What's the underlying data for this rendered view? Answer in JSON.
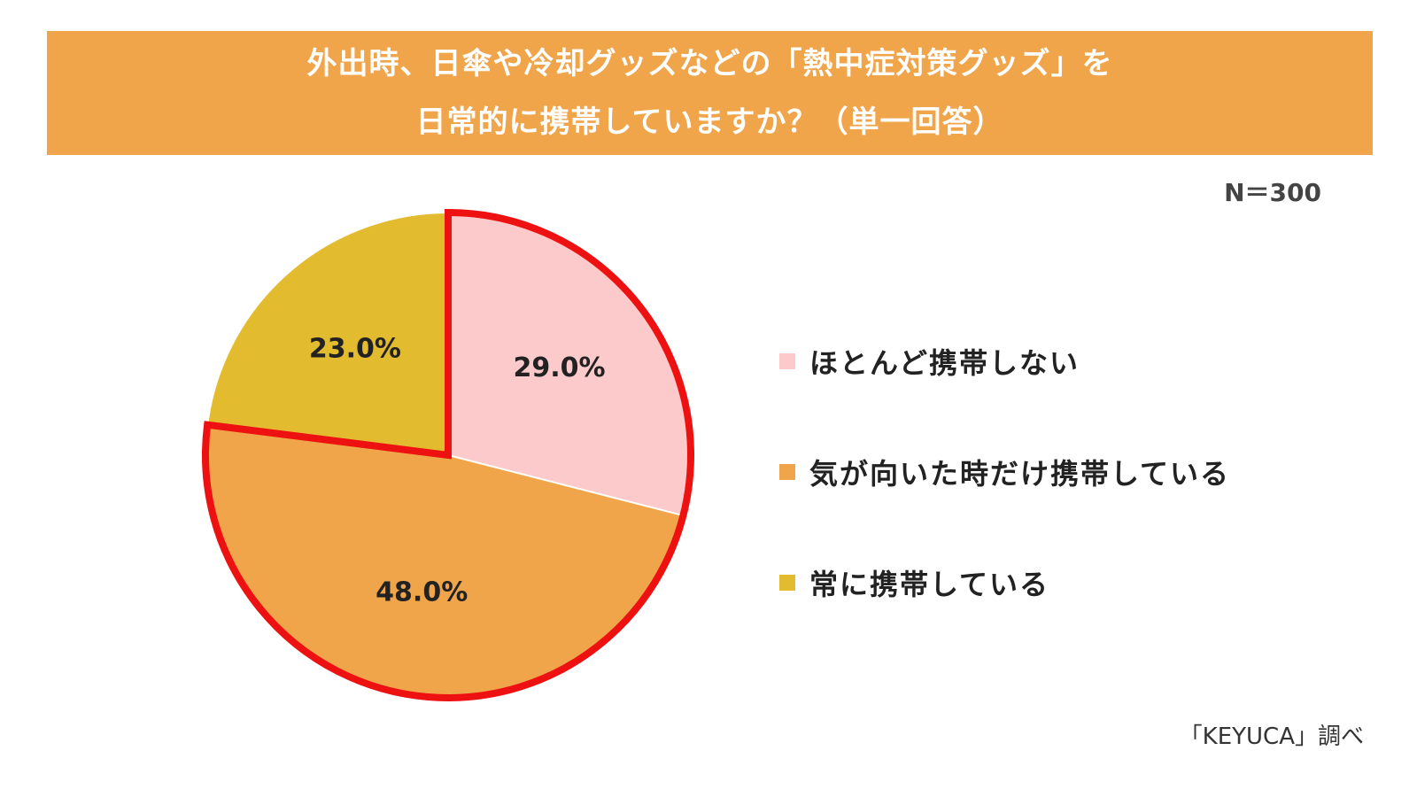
{
  "title": {
    "line1": "外出時、日傘や冷却グッズなどの「熱中症対策グッズ」を",
    "line2": "日常的に携帯していますか？（単一回答）"
  },
  "sample_size": "N＝300",
  "source": "「KEYUCA」調べ",
  "colors": {
    "banner": "#f0a54a",
    "highlight_outline": "#ee1111"
  },
  "chart_data": {
    "type": "pie",
    "title": "外出時、日傘や冷却グッズなどの「熱中症対策グッズ」を日常的に携帯していますか？（単一回答）",
    "unit": "%",
    "legend_position": "right",
    "highlighted": [
      "ほとんど携帯しない",
      "気が向いた時だけ携帯している"
    ],
    "slices": [
      {
        "label": "ほとんど携帯しない",
        "value": 29.0,
        "display": "29.0%",
        "color": "#fccaca"
      },
      {
        "label": "気が向いた時だけ携帯している",
        "value": 48.0,
        "display": "48.0%",
        "color": "#f0a54a"
      },
      {
        "label": "常に携帯している",
        "value": 23.0,
        "display": "23.0%",
        "color": "#e3bb2e"
      }
    ]
  }
}
